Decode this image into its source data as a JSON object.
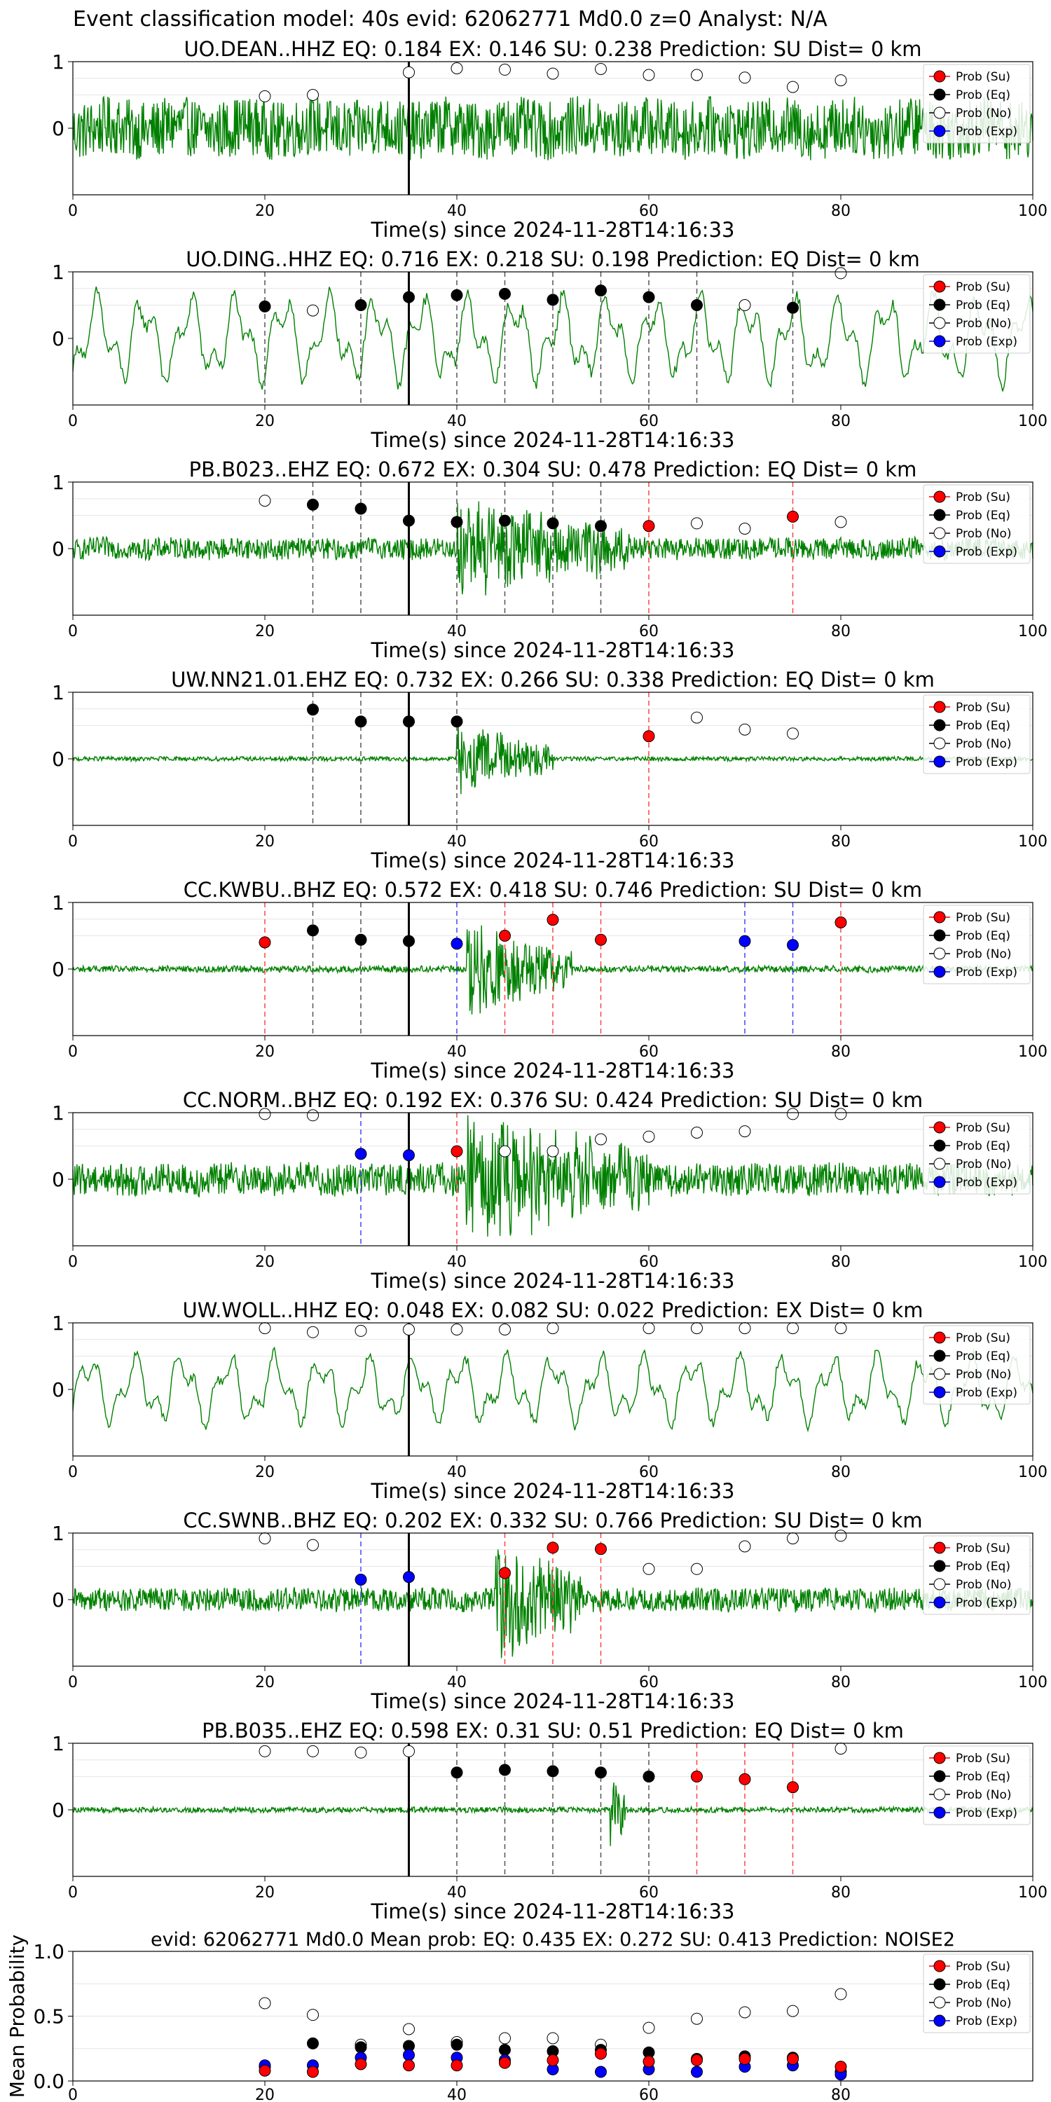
{
  "figure": {
    "suptitle": "Event classification model: 40s evid: 62062771 Md0.0 z=0 Analyst: N/A",
    "xlabel": "Time(s) since 2024-11-28T14:16:33",
    "legend": [
      "Prob (Su)",
      "Prob (Eq)",
      "Prob (No)",
      "Prob (Exp)"
    ],
    "colors": {
      "waveform": "#008000",
      "su": "#ff0000",
      "eq": "#000000",
      "no": "#ffffff",
      "exp": "#0000ff",
      "pick": "#000000",
      "dash_eq": "#555555",
      "dash_su": "#ff4444",
      "dash_exp": "#4444ff"
    }
  },
  "chart_data": [
    {
      "type": "line",
      "title": "UO.DEAN..HHZ   EQ: 0.184  EX: 0.146  SU: 0.238   Prediction: SU    Dist= 0 km",
      "xlim": [
        0,
        100
      ],
      "xticks": [
        0,
        20,
        40,
        60,
        80,
        100
      ],
      "yticks": [
        0,
        1
      ],
      "pick_time": 35,
      "waveform": {
        "style": "noisy",
        "amplitude": 0.55,
        "burst": null
      },
      "points": [
        {
          "t": 20,
          "cls": "no",
          "p": 0.48
        },
        {
          "t": 25,
          "cls": "no",
          "p": 0.5
        },
        {
          "t": 35,
          "cls": "no",
          "p": 0.84
        },
        {
          "t": 40,
          "cls": "no",
          "p": 0.9
        },
        {
          "t": 45,
          "cls": "no",
          "p": 0.88
        },
        {
          "t": 50,
          "cls": "no",
          "p": 0.82
        },
        {
          "t": 55,
          "cls": "no",
          "p": 0.89
        },
        {
          "t": 60,
          "cls": "no",
          "p": 0.8
        },
        {
          "t": 65,
          "cls": "no",
          "p": 0.8
        },
        {
          "t": 70,
          "cls": "no",
          "p": 0.76
        },
        {
          "t": 75,
          "cls": "no",
          "p": 0.62
        },
        {
          "t": 80,
          "cls": "no",
          "p": 0.72
        }
      ]
    },
    {
      "type": "line",
      "title": "UO.DING..HHZ   EQ: 0.716  EX: 0.218  SU: 0.198   Prediction: EQ    Dist= 0 km",
      "xlim": [
        0,
        100
      ],
      "xticks": [
        0,
        20,
        40,
        60,
        80,
        100
      ],
      "yticks": [
        0,
        1
      ],
      "pick_time": 35,
      "waveform": {
        "style": "smooth",
        "amplitude": 0.75,
        "burst": null
      },
      "points": [
        {
          "t": 20,
          "cls": "eq",
          "p": 0.48
        },
        {
          "t": 25,
          "cls": "no",
          "p": 0.42
        },
        {
          "t": 30,
          "cls": "eq",
          "p": 0.5
        },
        {
          "t": 35,
          "cls": "eq",
          "p": 0.62
        },
        {
          "t": 40,
          "cls": "eq",
          "p": 0.65
        },
        {
          "t": 45,
          "cls": "eq",
          "p": 0.67
        },
        {
          "t": 50,
          "cls": "eq",
          "p": 0.58
        },
        {
          "t": 55,
          "cls": "eq",
          "p": 0.72
        },
        {
          "t": 60,
          "cls": "eq",
          "p": 0.62
        },
        {
          "t": 65,
          "cls": "eq",
          "p": 0.5
        },
        {
          "t": 70,
          "cls": "no",
          "p": 0.5
        },
        {
          "t": 75,
          "cls": "eq",
          "p": 0.46
        },
        {
          "t": 80,
          "cls": "no",
          "p": 0.98
        }
      ]
    },
    {
      "type": "line",
      "title": "PB.B023..EHZ   EQ: 0.672  EX: 0.304  SU: 0.478   Prediction: EQ    Dist= 0 km",
      "xlim": [
        0,
        100
      ],
      "xticks": [
        0,
        20,
        40,
        60,
        80,
        100
      ],
      "yticks": [
        0,
        1
      ],
      "pick_time": 35,
      "waveform": {
        "style": "noisy",
        "amplitude": 0.2,
        "burst": {
          "start": 40,
          "end": 58,
          "amp": 0.7
        }
      },
      "points": [
        {
          "t": 20,
          "cls": "no",
          "p": 0.72
        },
        {
          "t": 25,
          "cls": "eq",
          "p": 0.66
        },
        {
          "t": 30,
          "cls": "eq",
          "p": 0.6
        },
        {
          "t": 35,
          "cls": "eq",
          "p": 0.42
        },
        {
          "t": 40,
          "cls": "eq",
          "p": 0.4
        },
        {
          "t": 45,
          "cls": "eq",
          "p": 0.42
        },
        {
          "t": 50,
          "cls": "eq",
          "p": 0.38
        },
        {
          "t": 55,
          "cls": "eq",
          "p": 0.34
        },
        {
          "t": 60,
          "cls": "su",
          "p": 0.34
        },
        {
          "t": 65,
          "cls": "no",
          "p": 0.38
        },
        {
          "t": 70,
          "cls": "no",
          "p": 0.3
        },
        {
          "t": 75,
          "cls": "su",
          "p": 0.48
        },
        {
          "t": 80,
          "cls": "no",
          "p": 0.4
        }
      ]
    },
    {
      "type": "line",
      "title": "UW.NN21.01.EHZ   EQ: 0.732  EX: 0.266  SU: 0.338   Prediction: EQ    Dist= 0 km",
      "xlim": [
        0,
        100
      ],
      "xticks": [
        0,
        20,
        40,
        60,
        80,
        100
      ],
      "yticks": [
        0,
        1
      ],
      "pick_time": 35,
      "waveform": {
        "style": "noisy",
        "amplitude": 0.04,
        "burst": {
          "start": 40,
          "end": 50,
          "amp": 0.55
        }
      },
      "points": [
        {
          "t": 25,
          "cls": "eq",
          "p": 0.74
        },
        {
          "t": 30,
          "cls": "eq",
          "p": 0.56
        },
        {
          "t": 35,
          "cls": "eq",
          "p": 0.56
        },
        {
          "t": 40,
          "cls": "eq",
          "p": 0.56
        },
        {
          "t": 60,
          "cls": "su",
          "p": 0.34
        },
        {
          "t": 65,
          "cls": "no",
          "p": 0.62
        },
        {
          "t": 70,
          "cls": "no",
          "p": 0.44
        },
        {
          "t": 75,
          "cls": "no",
          "p": 0.38
        }
      ]
    },
    {
      "type": "line",
      "title": "CC.KWBU..BHZ   EQ: 0.572  EX: 0.418  SU: 0.746   Prediction: SU    Dist= 0 km",
      "xlim": [
        0,
        100
      ],
      "xticks": [
        0,
        20,
        40,
        60,
        80,
        100
      ],
      "yticks": [
        0,
        1
      ],
      "pick_time": 35,
      "waveform": {
        "style": "noisy",
        "amplitude": 0.06,
        "burst": {
          "start": 41,
          "end": 52,
          "amp": 0.7
        }
      },
      "points": [
        {
          "t": 20,
          "cls": "su",
          "p": 0.4
        },
        {
          "t": 25,
          "cls": "eq",
          "p": 0.58
        },
        {
          "t": 30,
          "cls": "eq",
          "p": 0.44
        },
        {
          "t": 35,
          "cls": "eq",
          "p": 0.42
        },
        {
          "t": 40,
          "cls": "exp",
          "p": 0.38
        },
        {
          "t": 45,
          "cls": "su",
          "p": 0.5
        },
        {
          "t": 50,
          "cls": "su",
          "p": 0.74
        },
        {
          "t": 55,
          "cls": "su",
          "p": 0.44
        },
        {
          "t": 70,
          "cls": "exp",
          "p": 0.42
        },
        {
          "t": 75,
          "cls": "exp",
          "p": 0.36
        },
        {
          "t": 80,
          "cls": "su",
          "p": 0.7
        }
      ]
    },
    {
      "type": "line",
      "title": "CC.NORM..BHZ   EQ: 0.192  EX: 0.376  SU: 0.424   Prediction: SU    Dist= 0 km",
      "xlim": [
        0,
        100
      ],
      "xticks": [
        0,
        20,
        40,
        60,
        80,
        100
      ],
      "yticks": [
        0,
        1
      ],
      "pick_time": 35,
      "waveform": {
        "style": "noisy",
        "amplitude": 0.3,
        "burst": {
          "start": 41,
          "end": 60,
          "amp": 0.85
        }
      },
      "points": [
        {
          "t": 20,
          "cls": "no",
          "p": 0.98
        },
        {
          "t": 25,
          "cls": "no",
          "p": 0.96
        },
        {
          "t": 30,
          "cls": "exp",
          "p": 0.38
        },
        {
          "t": 35,
          "cls": "exp",
          "p": 0.36
        },
        {
          "t": 40,
          "cls": "su",
          "p": 0.42
        },
        {
          "t": 45,
          "cls": "no",
          "p": 0.42
        },
        {
          "t": 50,
          "cls": "no",
          "p": 0.42
        },
        {
          "t": 55,
          "cls": "no",
          "p": 0.6
        },
        {
          "t": 60,
          "cls": "no",
          "p": 0.64
        },
        {
          "t": 65,
          "cls": "no",
          "p": 0.7
        },
        {
          "t": 70,
          "cls": "no",
          "p": 0.72
        },
        {
          "t": 75,
          "cls": "no",
          "p": 0.98
        },
        {
          "t": 80,
          "cls": "no",
          "p": 0.98
        }
      ]
    },
    {
      "type": "line",
      "title": "UW.WOLL..HHZ   EQ: 0.048  EX: 0.082  SU: 0.022   Prediction: EX    Dist= 0 km",
      "xlim": [
        0,
        100
      ],
      "xticks": [
        0,
        20,
        40,
        60,
        80,
        100
      ],
      "yticks": [
        0,
        1
      ],
      "pick_time": 35,
      "waveform": {
        "style": "smooth",
        "amplitude": 0.6,
        "burst": null
      },
      "points": [
        {
          "t": 20,
          "cls": "no",
          "p": 0.92
        },
        {
          "t": 25,
          "cls": "no",
          "p": 0.86
        },
        {
          "t": 30,
          "cls": "no",
          "p": 0.88
        },
        {
          "t": 35,
          "cls": "no",
          "p": 0.9
        },
        {
          "t": 40,
          "cls": "no",
          "p": 0.9
        },
        {
          "t": 45,
          "cls": "no",
          "p": 0.9
        },
        {
          "t": 50,
          "cls": "no",
          "p": 0.92
        },
        {
          "t": 60,
          "cls": "no",
          "p": 0.92
        },
        {
          "t": 65,
          "cls": "no",
          "p": 0.92
        },
        {
          "t": 70,
          "cls": "no",
          "p": 0.92
        },
        {
          "t": 75,
          "cls": "no",
          "p": 0.92
        },
        {
          "t": 80,
          "cls": "no",
          "p": 0.92
        }
      ]
    },
    {
      "type": "line",
      "title": "CC.SWNB..BHZ   EQ: 0.202  EX: 0.332  SU: 0.766   Prediction: SU    Dist= 0 km",
      "xlim": [
        0,
        100
      ],
      "xticks": [
        0,
        20,
        40,
        60,
        80,
        100
      ],
      "yticks": [
        0,
        1
      ],
      "pick_time": 35,
      "waveform": {
        "style": "noisy",
        "amplitude": 0.22,
        "burst": {
          "start": 44,
          "end": 53,
          "amp": 0.95
        }
      },
      "points": [
        {
          "t": 20,
          "cls": "no",
          "p": 0.92
        },
        {
          "t": 25,
          "cls": "no",
          "p": 0.82
        },
        {
          "t": 30,
          "cls": "exp",
          "p": 0.3
        },
        {
          "t": 35,
          "cls": "exp",
          "p": 0.34
        },
        {
          "t": 45,
          "cls": "su",
          "p": 0.4
        },
        {
          "t": 50,
          "cls": "su",
          "p": 0.78
        },
        {
          "t": 55,
          "cls": "su",
          "p": 0.76
        },
        {
          "t": 60,
          "cls": "no",
          "p": 0.46
        },
        {
          "t": 65,
          "cls": "no",
          "p": 0.46
        },
        {
          "t": 70,
          "cls": "no",
          "p": 0.8
        },
        {
          "t": 75,
          "cls": "no",
          "p": 0.92
        },
        {
          "t": 80,
          "cls": "no",
          "p": 0.96
        }
      ]
    },
    {
      "type": "line",
      "title": "PB.B035..EHZ   EQ: 0.598  EX: 0.31  SU: 0.51   Prediction: EQ    Dist= 0 km",
      "xlim": [
        0,
        100
      ],
      "xticks": [
        0,
        20,
        40,
        60,
        80,
        100
      ],
      "yticks": [
        0,
        1
      ],
      "pick_time": 35,
      "waveform": {
        "style": "noisy",
        "amplitude": 0.05,
        "burst": {
          "start": 56,
          "end": 57.5,
          "amp": 0.9
        }
      },
      "points": [
        {
          "t": 20,
          "cls": "no",
          "p": 0.88
        },
        {
          "t": 25,
          "cls": "no",
          "p": 0.88
        },
        {
          "t": 30,
          "cls": "no",
          "p": 0.86
        },
        {
          "t": 35,
          "cls": "no",
          "p": 0.88
        },
        {
          "t": 40,
          "cls": "eq",
          "p": 0.56
        },
        {
          "t": 45,
          "cls": "eq",
          "p": 0.6
        },
        {
          "t": 50,
          "cls": "eq",
          "p": 0.58
        },
        {
          "t": 55,
          "cls": "eq",
          "p": 0.56
        },
        {
          "t": 60,
          "cls": "eq",
          "p": 0.5
        },
        {
          "t": 65,
          "cls": "su",
          "p": 0.5
        },
        {
          "t": 70,
          "cls": "su",
          "p": 0.46
        },
        {
          "t": 75,
          "cls": "su",
          "p": 0.34
        },
        {
          "t": 80,
          "cls": "no",
          "p": 0.92
        }
      ]
    },
    {
      "type": "scatter",
      "title": "evid: 62062771  Md0.0   Mean prob:    EQ: 0.435  EX: 0.272  SU: 0.413    Prediction: NOISE2",
      "ylabel": "Mean Probability",
      "xlim": [
        0,
        100
      ],
      "ylim": [
        0,
        1
      ],
      "xticks": [
        0,
        20,
        40,
        60,
        80
      ],
      "yticks": [
        "0.0",
        "0.5",
        "1.0"
      ],
      "series": [
        {
          "name": "Prob (Su)",
          "cls": "su",
          "x": [
            20,
            25,
            30,
            35,
            40,
            45,
            50,
            55,
            60,
            65,
            70,
            75,
            80
          ],
          "y": [
            0.08,
            0.07,
            0.13,
            0.12,
            0.12,
            0.14,
            0.16,
            0.21,
            0.15,
            0.16,
            0.17,
            0.17,
            0.11
          ]
        },
        {
          "name": "Prob (Eq)",
          "cls": "eq",
          "x": [
            20,
            25,
            30,
            35,
            40,
            45,
            50,
            55,
            60,
            65,
            70,
            75,
            80
          ],
          "y": [
            0.11,
            0.29,
            0.26,
            0.27,
            0.28,
            0.24,
            0.23,
            0.24,
            0.22,
            0.17,
            0.19,
            0.18,
            0.07
          ]
        },
        {
          "name": "Prob (No)",
          "cls": "no",
          "x": [
            20,
            25,
            30,
            35,
            40,
            45,
            50,
            55,
            60,
            65,
            70,
            75,
            80
          ],
          "y": [
            0.6,
            0.51,
            0.28,
            0.4,
            0.3,
            0.33,
            0.33,
            0.28,
            0.41,
            0.48,
            0.53,
            0.54,
            0.67
          ]
        },
        {
          "name": "Prob (Exp)",
          "cls": "exp",
          "x": [
            20,
            25,
            30,
            35,
            40,
            45,
            50,
            55,
            60,
            65,
            70,
            75,
            80
          ],
          "y": [
            0.12,
            0.12,
            0.18,
            0.2,
            0.18,
            0.16,
            0.09,
            0.07,
            0.09,
            0.07,
            0.11,
            0.12,
            0.05
          ]
        }
      ]
    }
  ]
}
